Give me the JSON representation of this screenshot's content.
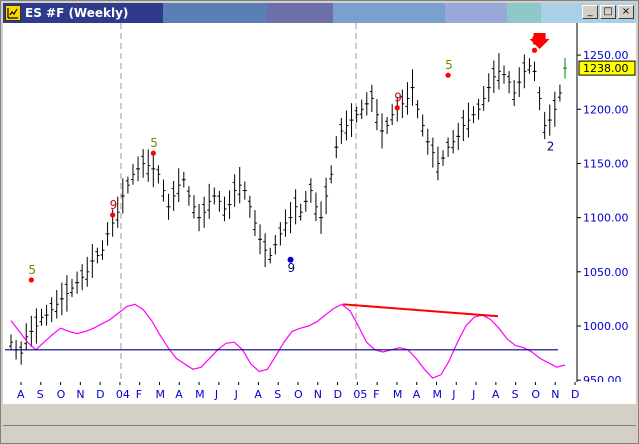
{
  "window": {
    "title": "ES #F (Weekly)",
    "icon": "chart-icon",
    "buttons": {
      "minimize": "_",
      "maximize": "□",
      "close": "×"
    },
    "title_band_colors": [
      "#2e3a8c",
      "#5a7fb4",
      "#6e6ea8",
      "#7aa0d0",
      "#9aa8d8",
      "#8fc8c8",
      "#a8d0e8"
    ]
  },
  "colors": {
    "price_bars": "#000000",
    "last_bar": "#008000",
    "oscillator": "#ff00ff",
    "signal_line": "#000080",
    "divergence": "#ff0000",
    "dots": "#ff0000",
    "count_5": "#808000",
    "count_9": "#cc0000",
    "axis_text": "#0000cc",
    "price_label_bg": "#ffff00"
  },
  "chart_data": {
    "type": "bar",
    "title": "ES #F (Weekly)",
    "ylim": [
      940,
      1275
    ],
    "y_ticks": [
      "1250.00",
      "1200.00",
      "1150.00",
      "1100.00",
      "1050.00",
      "1000.00",
      "950.00"
    ],
    "last_price": "1238.00",
    "x_labels": [
      "A",
      "S",
      "O",
      "N",
      "D",
      "04",
      "F",
      "M",
      "A",
      "M",
      "J",
      "J",
      "A",
      "S",
      "O",
      "N",
      "D",
      "05",
      "F",
      "M",
      "A",
      "M",
      "J",
      "J",
      "A",
      "S",
      "O",
      "N",
      "D"
    ],
    "year_dividers": [
      "04",
      "05"
    ],
    "series": [
      {
        "name": "",
        "values": [
          985,
          978,
          975,
          990,
          995,
          1000,
          1008,
          1010,
          1015,
          1020,
          1025,
          1030,
          1035,
          1040,
          1045,
          1050,
          1060,
          1065,
          1070,
          1085,
          1095,
          1105,
          1120,
          1130,
          1140,
          1145,
          1150,
          1148,
          1145,
          1140,
          1125,
          1110,
          1120,
          1130,
          1135,
          1120,
          1110,
          1100,
          1105,
          1115,
          1120,
          1115,
          1108,
          1112,
          1125,
          1130,
          1125,
          1110,
          1095,
          1080,
          1070,
          1065,
          1075,
          1085,
          1095,
          1100,
          1110,
          1105,
          1115,
          1125,
          1110,
          1100,
          1120,
          1140,
          1165,
          1180,
          1185,
          1190,
          1195,
          1200,
          1205,
          1210,
          1195,
          1180,
          1185,
          1195,
          1200,
          1205,
          1210,
          1220,
          1200,
          1185,
          1170,
          1160,
          1150,
          1155,
          1165,
          1170,
          1175,
          1185,
          1190,
          1195,
          1200,
          1210,
          1220,
          1230,
          1235,
          1232,
          1225,
          1215,
          1225,
          1235,
          1240,
          1235,
          1210,
          1185,
          1190,
          1200,
          1215,
          1238
        ]
      },
      {
        "name": "",
        "values": [
          1005,
          995,
          985,
          978,
          985,
          992,
          998,
          995,
          993,
          995,
          998,
          1002,
          1006,
          1012,
          1018,
          1020,
          1015,
          1005,
          992,
          980,
          970,
          965,
          960,
          962,
          970,
          978,
          984,
          985,
          978,
          965,
          958,
          960,
          972,
          985,
          995,
          998,
          1000,
          1004,
          1010,
          1016,
          1020,
          1014,
          1000,
          985,
          978,
          976,
          978,
          980,
          978,
          970,
          960,
          952,
          955,
          968,
          985,
          1000,
          1008,
          1010,
          1006,
          998,
          988,
          982,
          980,
          976,
          970,
          966,
          962,
          964
        ]
      },
      {
        "name": "",
        "values": [
          978
        ]
      }
    ],
    "annotations": [
      {
        "text": "5",
        "kind": "count_5",
        "x_index": 4,
        "y": 1048
      },
      {
        "text": "9",
        "kind": "count_9",
        "x_index": 20,
        "y": 1108
      },
      {
        "text": "5",
        "kind": "count_5",
        "x_index": 28,
        "y": 1165
      },
      {
        "text": "9",
        "kind": "count_9_blue",
        "x_index": 55,
        "y": 1050
      },
      {
        "text": "9",
        "kind": "count_9",
        "x_index": 76,
        "y": 1207
      },
      {
        "text": "5",
        "kind": "count_5",
        "x_index": 86,
        "y": 1237
      },
      {
        "text": "9",
        "kind": "count_9",
        "x_index": 103,
        "y": 1260
      },
      {
        "text": "2",
        "kind": "count_2",
        "x_index": 106,
        "y": 1162
      }
    ]
  }
}
